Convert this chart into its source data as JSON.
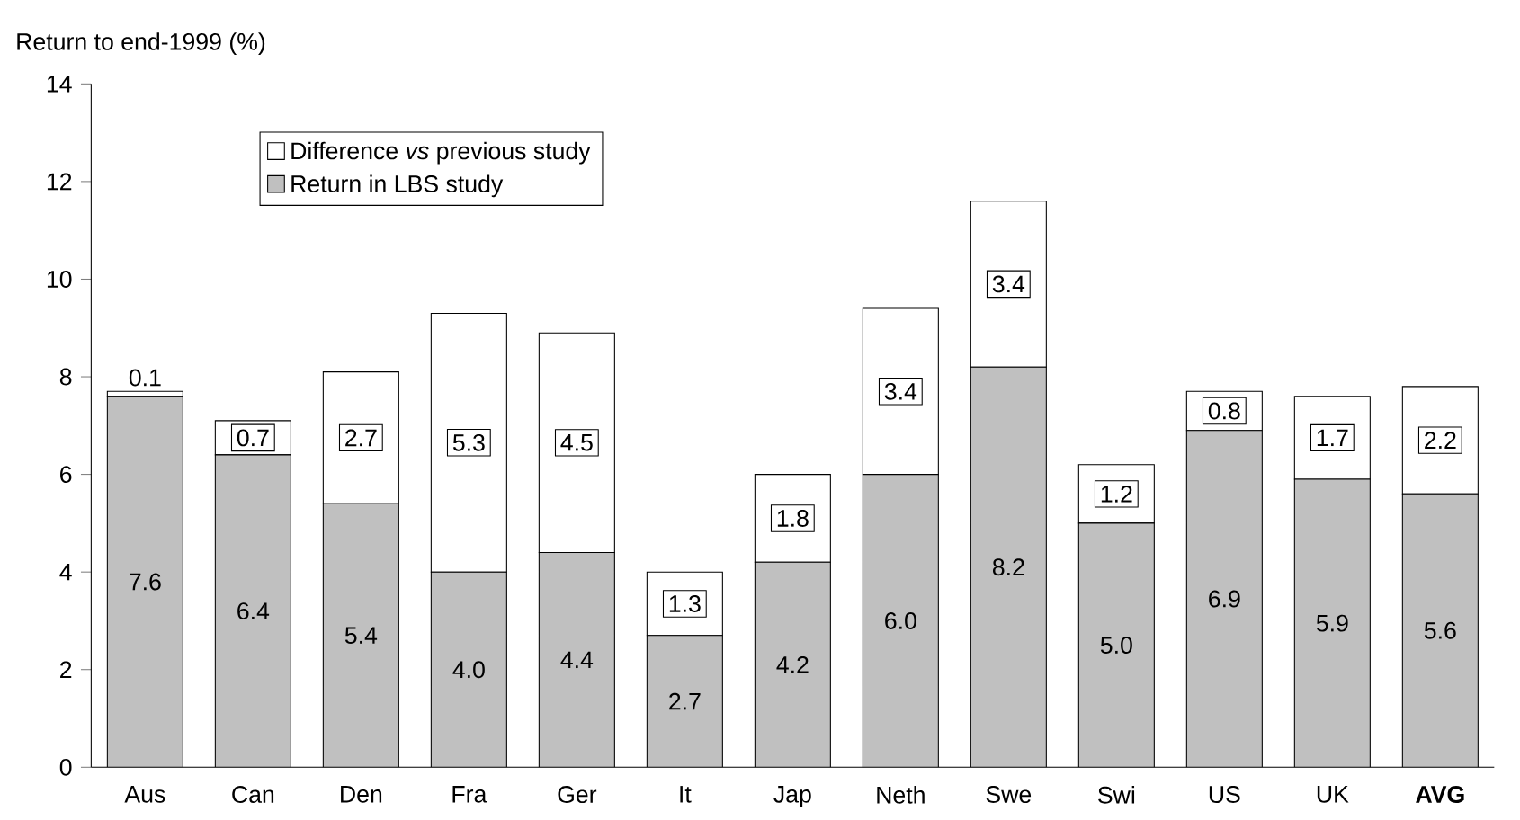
{
  "chart_data": {
    "type": "bar",
    "stacked": true,
    "ylabel": "Return to end-1999 (%)",
    "categories": [
      "Aus",
      "Can",
      "Den",
      "Fra",
      "Ger",
      "It",
      "Jap",
      "Neth",
      "Swe",
      "Swi",
      "US",
      "UK",
      "**AVG**"
    ],
    "series": [
      {
        "name": "Return in LBS study",
        "color": "#c0c0c0",
        "values": [
          7.6,
          6.4,
          5.4,
          4.0,
          4.4,
          2.7,
          4.2,
          6.0,
          8.2,
          5.0,
          6.9,
          5.9,
          5.6
        ],
        "value_labels": [
          "7.6",
          "6.4",
          "5.4",
          "4.0",
          "4.4",
          "2.7",
          "4.2",
          "6.0",
          "8.2",
          "5.0",
          "6.9",
          "5.9",
          "5.6"
        ]
      },
      {
        "name": "Difference *vs* previous study",
        "color": "#ffffff",
        "values": [
          0.1,
          0.7,
          2.7,
          5.3,
          4.5,
          1.3,
          1.8,
          3.4,
          3.4,
          1.2,
          0.8,
          1.7,
          2.2
        ],
        "value_labels": [
          "0.1",
          "0.7",
          "2.7",
          "5.3",
          "4.5",
          "1.3",
          "1.8",
          "3.4",
          "3.4",
          "1.2",
          "0.8",
          "1.7",
          "2.2"
        ]
      }
    ],
    "ylim": [
      0,
      14
    ],
    "yticks": [
      0,
      2,
      4,
      6,
      8,
      10,
      12,
      14
    ],
    "legend": "top left",
    "grid": false
  }
}
